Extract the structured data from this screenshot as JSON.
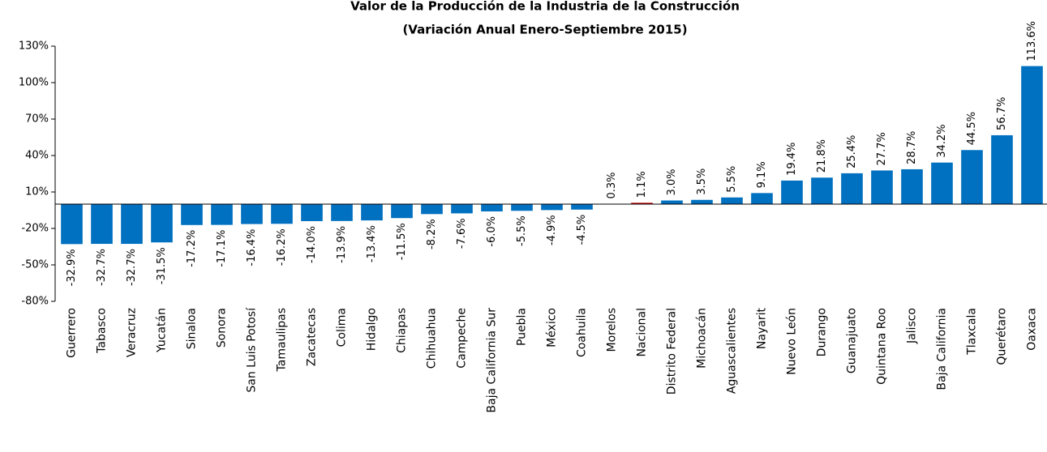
{
  "chart_data": {
    "type": "bar",
    "title": "Valor de la Producción de la Industria de la Construcción",
    "subtitle": "(Variación Anual Enero-Septiembre 2015)",
    "categories": [
      "Guerrero",
      "Tabasco",
      "Veracruz",
      "Yucatán",
      "Sinaloa",
      "Sonora",
      "San Luis Potosí",
      "Tamaulipas",
      "Zacatecas",
      "Colima",
      "Hidalgo",
      "Chiapas",
      "Chihuahua",
      "Campeche",
      "Baja California Sur",
      "Puebla",
      "México",
      "Coahuila",
      "Morelos",
      "Nacional",
      "Distrito Federal",
      "Michoacán",
      "Aguascalientes",
      "Nayarit",
      "Nuevo León",
      "Durango",
      "Guanajuato",
      "Quintana Roo",
      "Jalisco",
      "Baja California",
      "Tlaxcala",
      "Querétaro",
      "Oaxaca"
    ],
    "values": [
      -32.9,
      -32.7,
      -32.7,
      -31.5,
      -17.2,
      -17.1,
      -16.4,
      -16.2,
      -14.0,
      -13.9,
      -13.4,
      -11.5,
      -8.2,
      -7.6,
      -6.0,
      -5.5,
      -4.9,
      -4.5,
      0.3,
      1.1,
      3.0,
      3.5,
      5.5,
      9.1,
      19.4,
      21.8,
      25.4,
      27.7,
      28.7,
      34.2,
      44.5,
      56.7,
      113.6
    ],
    "value_labels": [
      "-32.9%",
      "-32.7%",
      "-32.7%",
      "-31.5%",
      "-17.2%",
      "-17.1%",
      "-16.4%",
      "-16.2%",
      "-14.0%",
      "-13.9%",
      "-13.4%",
      "-11.5%",
      "-8.2%",
      "-7.6%",
      "-6.0%",
      "-5.5%",
      "-4.9%",
      "-4.5%",
      "0.3%",
      "1.1%",
      "3.0%",
      "3.5%",
      "5.5%",
      "9.1%",
      "19.4%",
      "21.8%",
      "25.4%",
      "27.7%",
      "28.7%",
      "34.2%",
      "44.5%",
      "56.7%",
      "113.6%"
    ],
    "colors": [
      "#0070c0",
      "#0070c0",
      "#0070c0",
      "#0070c0",
      "#0070c0",
      "#0070c0",
      "#0070c0",
      "#0070c0",
      "#0070c0",
      "#0070c0",
      "#0070c0",
      "#0070c0",
      "#0070c0",
      "#0070c0",
      "#0070c0",
      "#0070c0",
      "#0070c0",
      "#0070c0",
      "#0070c0",
      "#c00000",
      "#0070c0",
      "#0070c0",
      "#0070c0",
      "#0070c0",
      "#0070c0",
      "#0070c0",
      "#0070c0",
      "#0070c0",
      "#0070c0",
      "#0070c0",
      "#0070c0",
      "#0070c0",
      "#0070c0"
    ],
    "ylim": [
      -80,
      130
    ],
    "yticks": [
      {
        "value": -80,
        "label": "-80%"
      },
      {
        "value": -50,
        "label": "-50%"
      },
      {
        "value": -20,
        "label": "-20%"
      },
      {
        "value": 10,
        "label": "10%"
      },
      {
        "value": 40,
        "label": "40%"
      },
      {
        "value": 70,
        "label": "70%"
      },
      {
        "value": 100,
        "label": "100%"
      },
      {
        "value": 130,
        "label": "130%"
      }
    ],
    "grid": false
  }
}
